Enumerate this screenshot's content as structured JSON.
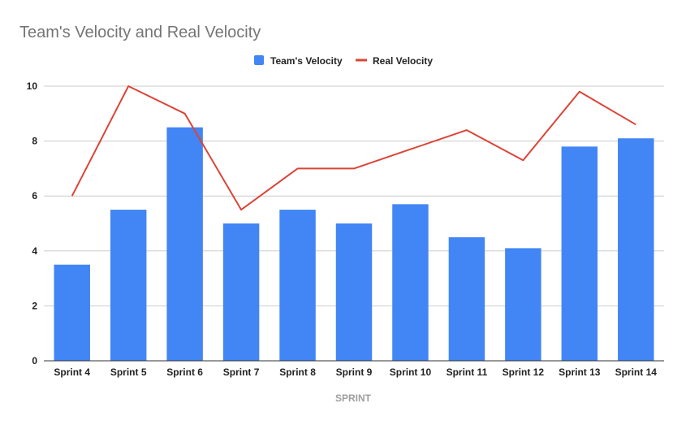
{
  "chart_data": {
    "type": "bar",
    "title": "Team's Velocity and Real Velocity",
    "xlabel": "SPRINT",
    "ylabel": "",
    "ylim": [
      0,
      10
    ],
    "yticks": [
      0,
      2,
      4,
      6,
      8,
      10
    ],
    "grid": true,
    "legend_position": "top-center",
    "categories": [
      "Sprint 4",
      "Sprint 5",
      "Sprint 6",
      "Sprint 7",
      "Sprint 8",
      "Sprint 9",
      "Sprint 10",
      "Sprint 11",
      "Sprint 12",
      "Sprint 13",
      "Sprint 14"
    ],
    "series": [
      {
        "name": "Team's Velocity",
        "type": "bar",
        "color": "#4285f4",
        "values": [
          3.5,
          5.5,
          8.5,
          5,
          5.5,
          5,
          5.7,
          4.5,
          4.1,
          7.8,
          8.1
        ]
      },
      {
        "name": "Real Velocity",
        "type": "line",
        "color": "#db4437",
        "values": [
          6,
          10,
          9,
          5.5,
          7,
          7,
          7.7,
          8.4,
          7.3,
          9.8,
          8.6
        ]
      }
    ]
  }
}
